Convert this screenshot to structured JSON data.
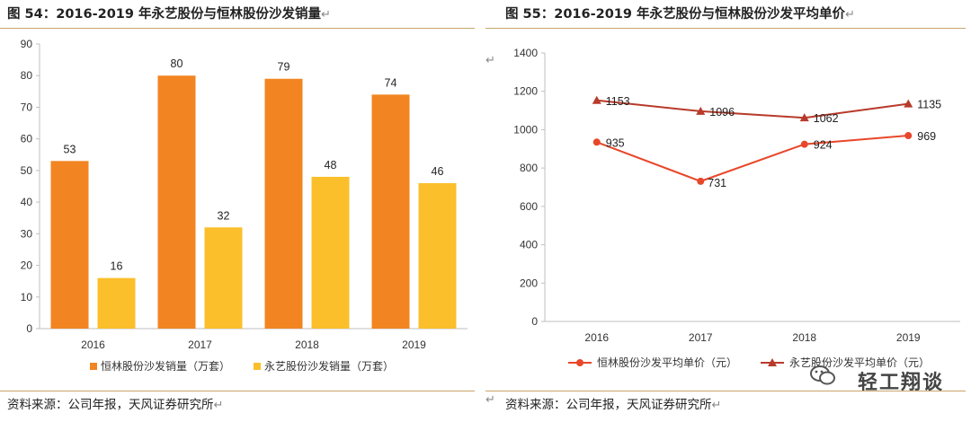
{
  "left_panel": {
    "title": "图 54：2016-2019 年永艺股份与恒林股份沙发销量",
    "return_mark": "↵",
    "source": "资料来源：公司年报，天风证券研究所",
    "chart_data": {
      "type": "bar",
      "categories": [
        "2016",
        "2017",
        "2018",
        "2019"
      ],
      "series": [
        {
          "name": "恒林股份沙发销量（万套）",
          "values": [
            53,
            80,
            79,
            74
          ],
          "color": "#f28522"
        },
        {
          "name": "永艺股份沙发销量（万套）",
          "values": [
            16,
            32,
            48,
            46
          ],
          "color": "#fbbf2b"
        }
      ],
      "ylim": [
        0,
        90
      ],
      "yticks": [
        "0",
        "10",
        "20",
        "30",
        "40",
        "50",
        "60",
        "70",
        "80",
        "90"
      ],
      "legend": "bottom",
      "grid": false
    }
  },
  "right_panel": {
    "title": "图 55：2016-2019 年永艺股份与恒林股份沙发平均单价",
    "return_mark": "↵",
    "source": "资料来源：公司年报，天风证券研究所",
    "chart_data": {
      "type": "line",
      "categories": [
        "2016",
        "2017",
        "2018",
        "2019"
      ],
      "series": [
        {
          "name": "恒林股份沙发平均单价（元）",
          "values": [
            935,
            731,
            924,
            969
          ],
          "color": "#e8472b",
          "marker": "circle"
        },
        {
          "name": "永艺股份沙发平均单价（元）",
          "values": [
            1153,
            1096,
            1062,
            1135
          ],
          "color": "#b83a2a",
          "marker": "triangle"
        }
      ],
      "ylim": [
        0,
        1400
      ],
      "yticks": [
        "0",
        "200",
        "400",
        "600",
        "800",
        "1000",
        "1200",
        "1400"
      ],
      "legend": "bottom",
      "grid": false
    }
  },
  "watermark": "轻工翔谈",
  "stray_marks": [
    "↵",
    "↵"
  ]
}
